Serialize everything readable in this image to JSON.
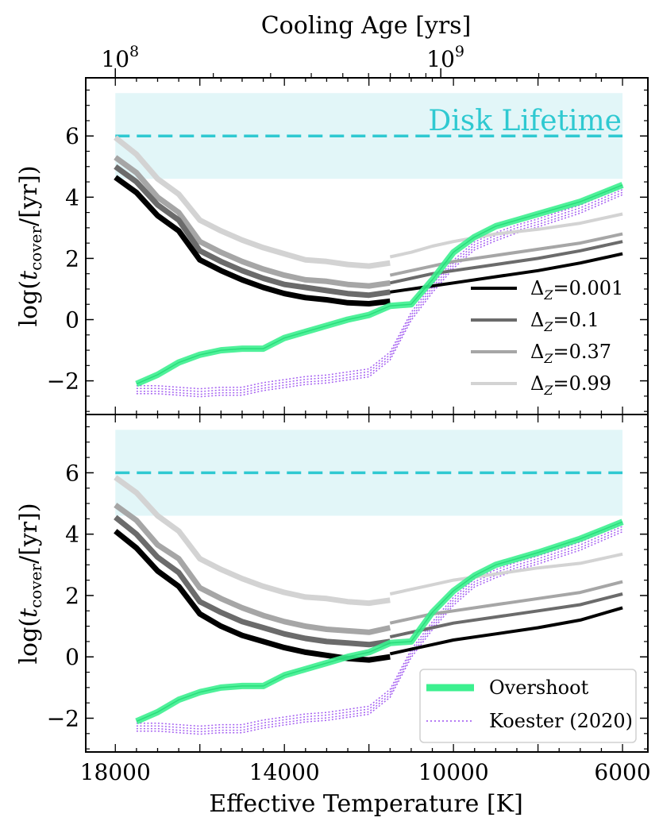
{
  "chart_data": {
    "type": "line",
    "top_axis": {
      "label": "Cooling Age [yrs]",
      "ticks": [
        {
          "base": "10",
          "exp": "8",
          "temp": 18000
        },
        {
          "base": "10",
          "exp": "9",
          "temp": 10300
        }
      ]
    },
    "xlabel": "Effective Temperature [K]",
    "ylabel_main": "log(",
    "ylabel_t": "t",
    "ylabel_sub": "cover",
    "ylabel_tail": "/[yr])",
    "x_ticks": [
      18000,
      14000,
      10000,
      6000
    ],
    "x_tick_labels": [
      "18000",
      "14000",
      "10000",
      "6000"
    ],
    "xlim": [
      18700,
      5400
    ],
    "y_ticks": [
      -2,
      0,
      2,
      4,
      6
    ],
    "y_tick_labels": [
      "−2",
      "0",
      "2",
      "4",
      "6"
    ],
    "ylim": [
      -3.1,
      7.9
    ],
    "disk": {
      "label": "Disk Lifetime",
      "band": [
        4.6,
        7.4
      ],
      "line": 6.0,
      "x_range": [
        18000,
        6000
      ],
      "color": "#2fc9d1",
      "band_color": "#e2f6f8"
    },
    "series_colors": {
      "dz_0.001": "#000000",
      "dz_0.1": "#6b6b6b",
      "dz_0.37": "#a6a6a6",
      "dz_0.99": "#d3d3d3",
      "overshoot": "#3cf08f",
      "koester": "#9b4ff0"
    },
    "legend_top": {
      "position": "center-right",
      "entries": [
        {
          "key": "dz_0.001",
          "prefix": "Δ",
          "sub": "Z",
          "value": "=0.001"
        },
        {
          "key": "dz_0.1",
          "prefix": "Δ",
          "sub": "Z",
          "value": "=0.1"
        },
        {
          "key": "dz_0.37",
          "prefix": "Δ",
          "sub": "Z",
          "value": "=0.37"
        },
        {
          "key": "dz_0.99",
          "prefix": "Δ",
          "sub": "Z",
          "value": "=0.99"
        }
      ]
    },
    "legend_bottom": {
      "position": "lower-right",
      "entries": [
        {
          "key": "overshoot",
          "label": "Overshoot"
        },
        {
          "key": "koester",
          "label": "Koester (2020)"
        }
      ]
    },
    "temps_hot": [
      18000,
      17500,
      17000,
      16500,
      16000,
      15500,
      15000,
      14500,
      14000,
      13500,
      13000,
      12500,
      12000,
      11500
    ],
    "temps_cool": [
      11500,
      11000,
      10500,
      10000,
      9000,
      8000,
      7000,
      6000
    ],
    "panels": [
      {
        "name": "top",
        "dz": {
          "dz_0.001": {
            "hot": [
              4.65,
              4.15,
              3.4,
              2.9,
              1.95,
              1.6,
              1.3,
              1.05,
              0.85,
              0.72,
              0.65,
              0.55,
              0.52,
              0.6
            ],
            "cool": [
              0.9,
              1.0,
              1.1,
              1.2,
              1.4,
              1.6,
              1.85,
              2.15
            ]
          },
          "dz_0.1": {
            "hot": [
              5.0,
              4.5,
              3.75,
              3.25,
              2.25,
              1.9,
              1.6,
              1.35,
              1.15,
              1.05,
              0.95,
              0.85,
              0.8,
              0.9
            ],
            "cool": [
              1.2,
              1.35,
              1.5,
              1.6,
              1.8,
              2.0,
              2.25,
              2.55
            ]
          },
          "dz_0.37": {
            "hot": [
              5.3,
              4.8,
              4.0,
              3.5,
              2.55,
              2.2,
              1.9,
              1.65,
              1.45,
              1.3,
              1.25,
              1.15,
              1.1,
              1.2
            ],
            "cool": [
              1.45,
              1.6,
              1.75,
              1.9,
              2.1,
              2.3,
              2.5,
              2.8
            ]
          },
          "dz_0.99": {
            "hot": [
              5.95,
              5.4,
              4.6,
              4.1,
              3.25,
              2.9,
              2.6,
              2.35,
              2.15,
              1.95,
              1.9,
              1.8,
              1.75,
              1.85
            ],
            "cool": [
              2.05,
              2.2,
              2.4,
              2.55,
              2.8,
              2.95,
              3.15,
              3.45
            ]
          }
        },
        "overshoot": {
          "x": [
            17500,
            17000,
            16500,
            16000,
            15500,
            15000,
            14500,
            14000,
            13500,
            13000,
            12500,
            12000,
            11500,
            11000,
            10500,
            10000,
            9500,
            9000,
            8500,
            8000,
            7000,
            6000
          ],
          "y": [
            -2.1,
            -1.8,
            -1.4,
            -1.15,
            -1.0,
            -0.95,
            -0.95,
            -0.6,
            -0.4,
            -0.2,
            0.0,
            0.15,
            0.45,
            0.5,
            1.3,
            2.2,
            2.7,
            3.05,
            3.25,
            3.45,
            3.85,
            4.4
          ]
        },
        "koester": {
          "x": [
            17500,
            17000,
            16500,
            16000,
            15500,
            15000,
            14500,
            14000,
            13500,
            13000,
            12500,
            12000,
            11500,
            11000,
            10500,
            10000,
            9500,
            9000,
            8500,
            8000,
            7000,
            6000
          ],
          "y": [
            -2.3,
            -2.3,
            -2.35,
            -2.4,
            -2.35,
            -2.35,
            -2.2,
            -2.1,
            -2.0,
            -1.95,
            -1.85,
            -1.75,
            -1.2,
            0.1,
            1.0,
            1.8,
            2.4,
            2.7,
            2.95,
            3.15,
            3.6,
            4.2
          ]
        }
      },
      {
        "name": "bottom",
        "dz": {
          "dz_0.001": {
            "hot": [
              4.1,
              3.55,
              2.8,
              2.3,
              1.4,
              1.0,
              0.7,
              0.5,
              0.3,
              0.15,
              0.05,
              -0.05,
              -0.1,
              0.0
            ],
            "cool": [
              0.1,
              0.25,
              0.4,
              0.55,
              0.75,
              0.95,
              1.2,
              1.6
            ]
          },
          "dz_0.1": {
            "hot": [
              4.55,
              4.0,
              3.25,
              2.75,
              1.8,
              1.45,
              1.15,
              0.95,
              0.75,
              0.6,
              0.5,
              0.45,
              0.4,
              0.5
            ],
            "cool": [
              0.65,
              0.8,
              0.95,
              1.1,
              1.3,
              1.5,
              1.7,
              2.05
            ]
          },
          "dz_0.37": {
            "hot": [
              4.95,
              4.45,
              3.65,
              3.2,
              2.25,
              1.9,
              1.6,
              1.35,
              1.15,
              1.0,
              0.9,
              0.85,
              0.8,
              0.95
            ],
            "cool": [
              1.1,
              1.25,
              1.4,
              1.5,
              1.7,
              1.9,
              2.1,
              2.45
            ]
          },
          "dz_0.99": {
            "hot": [
              5.85,
              5.35,
              4.6,
              4.1,
              3.2,
              2.85,
              2.55,
              2.3,
              2.1,
              1.95,
              1.9,
              1.8,
              1.75,
              1.85
            ],
            "cool": [
              2.05,
              2.2,
              2.35,
              2.5,
              2.7,
              2.9,
              3.05,
              3.35
            ]
          }
        },
        "overshoot": {
          "x": [
            17500,
            17000,
            16500,
            16000,
            15500,
            15000,
            14500,
            14000,
            13500,
            13000,
            12500,
            12000,
            11500,
            11000,
            10500,
            10000,
            9500,
            9000,
            8500,
            8000,
            7000,
            6000
          ],
          "y": [
            -2.1,
            -1.8,
            -1.4,
            -1.15,
            -1.0,
            -0.95,
            -0.95,
            -0.6,
            -0.4,
            -0.2,
            0.0,
            0.15,
            0.45,
            0.5,
            1.45,
            2.15,
            2.65,
            3.0,
            3.2,
            3.4,
            3.85,
            4.4
          ]
        },
        "koester": {
          "x": [
            17500,
            17000,
            16500,
            16000,
            15500,
            15000,
            14500,
            14000,
            13500,
            13000,
            12500,
            12000,
            11500,
            11000,
            10500,
            10000,
            9500,
            9000,
            8500,
            8000,
            7000,
            6000
          ],
          "y": [
            -2.3,
            -2.3,
            -2.35,
            -2.4,
            -2.35,
            -2.35,
            -2.2,
            -2.1,
            -2.0,
            -1.95,
            -1.85,
            -1.75,
            -1.2,
            0.1,
            1.0,
            1.8,
            2.4,
            2.7,
            2.95,
            3.15,
            3.6,
            4.2
          ]
        }
      }
    ]
  }
}
